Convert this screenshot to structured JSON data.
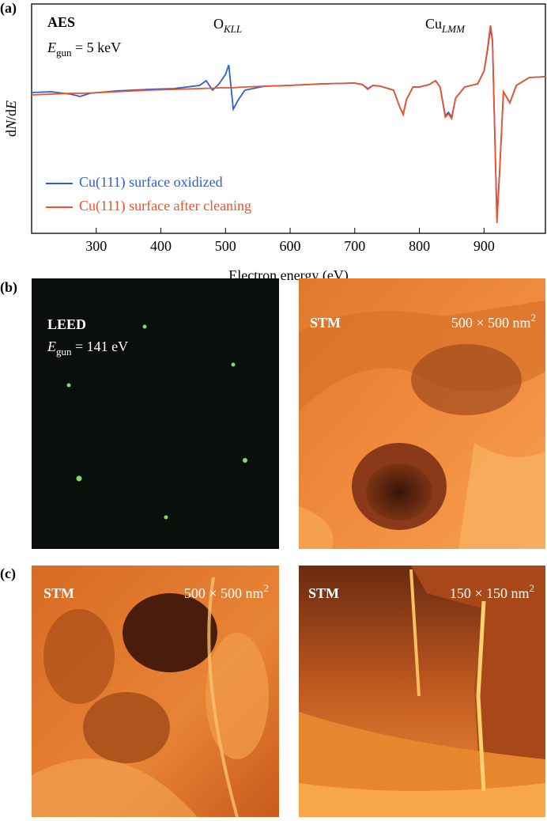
{
  "panel_labels": [
    "(a)",
    "(b)",
    "(c)"
  ],
  "chart_data": {
    "type": "line",
    "x_label": "Electron energy (eV)",
    "y_label": [
      "d",
      "N",
      "/d",
      "E"
    ],
    "annotations": {
      "aes": "AES",
      "egun": [
        "E",
        "gun",
        " = 5 keV"
      ],
      "okll": [
        "O",
        "KLL"
      ],
      "culmm": [
        "Cu",
        "LMM"
      ]
    },
    "x": [
      200,
      230,
      260,
      275,
      290,
      330,
      380,
      420,
      460,
      470,
      480,
      490,
      500,
      505,
      512,
      520,
      530,
      560,
      600,
      650,
      700,
      712,
      720,
      728,
      740,
      760,
      770,
      775,
      780,
      790,
      800,
      815,
      825,
      832,
      840,
      845,
      850,
      856,
      870,
      890,
      900,
      905,
      910,
      913,
      917,
      920,
      924,
      930,
      940,
      950,
      970,
      995
    ],
    "series": [
      {
        "name": "Cu(111) surface oxidized",
        "color": "#2b5fd4",
        "values": [
          0.15,
          0.2,
          0.05,
          -0.1,
          0.1,
          0.25,
          0.35,
          0.4,
          0.6,
          0.9,
          0.3,
          0.7,
          1.3,
          1.9,
          -0.9,
          -0.3,
          0.3,
          0.55,
          0.6,
          0.7,
          0.75,
          0.65,
          0.4,
          0.6,
          0.55,
          0.3,
          -0.8,
          -1.2,
          -0.3,
          0.5,
          0.5,
          0.65,
          0.9,
          0.5,
          -1.3,
          -1.1,
          -1.4,
          -0.2,
          0.5,
          0.7,
          1.5,
          2.7,
          4.2,
          3.4,
          -3,
          -7.8,
          -5,
          0.2,
          -0.5,
          0.6,
          1.1,
          1.15
        ]
      },
      {
        "name": "Cu(111) surface after cleaning",
        "color": "#ef5128",
        "values": [
          0,
          0.05,
          0.1,
          0.1,
          0.12,
          0.2,
          0.3,
          0.35,
          0.4,
          0.42,
          0.42,
          0.45,
          0.45,
          0.45,
          0.45,
          0.48,
          0.5,
          0.55,
          0.6,
          0.7,
          0.75,
          0.65,
          0.35,
          0.6,
          0.55,
          0.3,
          -0.8,
          -1.25,
          -0.3,
          0.5,
          0.5,
          0.65,
          0.9,
          0.5,
          -1.4,
          -1.2,
          -1.5,
          -0.2,
          0.5,
          0.7,
          1.5,
          2.8,
          4.4,
          3.5,
          -3,
          -8.1,
          -5,
          0.2,
          -0.5,
          0.6,
          1.1,
          1.15
        ]
      }
    ],
    "xlim": [
      200,
      995
    ],
    "ylim": [
      -8.75,
      5.75
    ],
    "xticks": [
      300,
      400,
      500,
      600,
      700,
      800,
      900
    ]
  },
  "images": [
    {
      "label": "LEED",
      "caption": [
        "E",
        "gun",
        " = 141 eV"
      ]
    },
    {
      "label": "STM",
      "scale": [
        "500 × 500 nm",
        "2"
      ]
    },
    {
      "label": "STM",
      "scale": [
        "500 × 500 nm",
        "2"
      ]
    },
    {
      "label": "STM",
      "scale": [
        "150 × 150 nm",
        "2"
      ]
    }
  ]
}
